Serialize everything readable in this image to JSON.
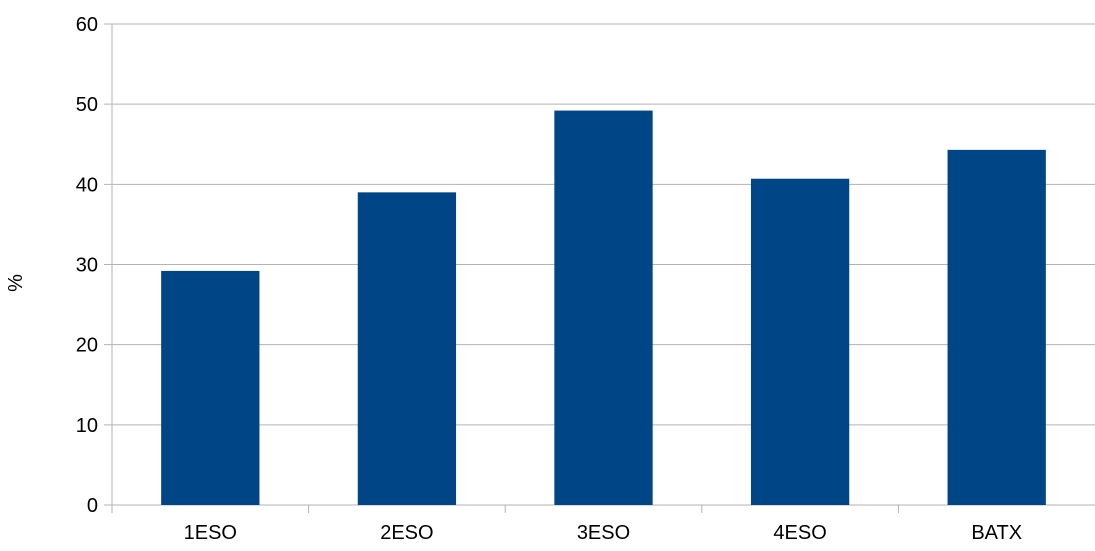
{
  "chart_data": {
    "type": "bar",
    "categories": [
      "1ESO",
      "2ESO",
      "3ESO",
      "4ESO",
      "BATX"
    ],
    "values": [
      29.2,
      39.0,
      49.2,
      40.7,
      44.3
    ],
    "title": "",
    "xlabel": "",
    "ylabel": "%",
    "ylim": [
      0,
      60
    ],
    "yticks": [
      0,
      10,
      20,
      30,
      40,
      50,
      60
    ],
    "grid": true,
    "legend": "none",
    "bar_color": "#004586",
    "grid_color": "#b3b3b3"
  }
}
